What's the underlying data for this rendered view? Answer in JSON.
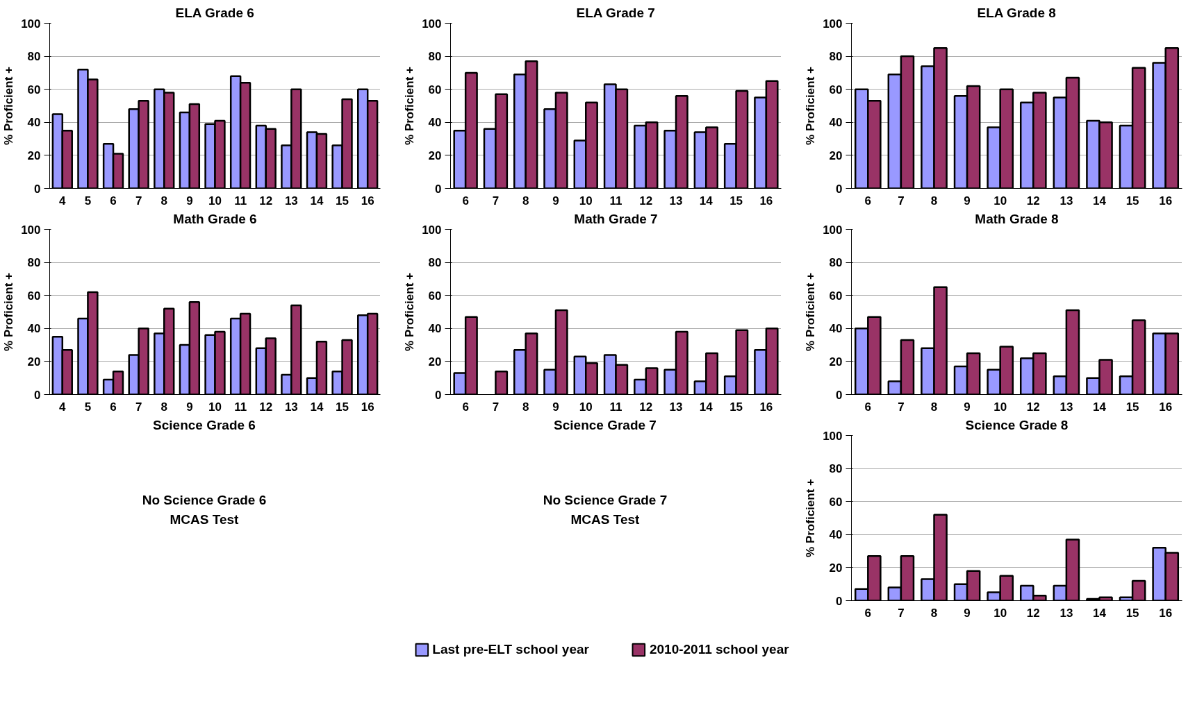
{
  "chart_data": [
    {
      "type": "bar",
      "title": "ELA Grade 6",
      "ylabel": "% Proficient +",
      "categories": [
        "4",
        "5",
        "6",
        "7",
        "8",
        "9",
        "10",
        "11",
        "12",
        "13",
        "14",
        "15",
        "16"
      ],
      "ylim": [
        0,
        100
      ],
      "yticks": [
        0,
        20,
        40,
        60,
        80,
        100
      ],
      "grid": "y",
      "series": [
        {
          "color": "#9999ff",
          "values": [
            45,
            72,
            27,
            48,
            60,
            46,
            39,
            68,
            38,
            26,
            34,
            26,
            60
          ]
        },
        {
          "color": "#993366",
          "values": [
            35,
            66,
            21,
            53,
            58,
            51,
            41,
            64,
            36,
            60,
            33,
            54,
            53
          ]
        }
      ]
    },
    {
      "type": "bar",
      "title": "ELA Grade 7",
      "ylabel": "% Proficient +",
      "categories": [
        "6",
        "7",
        "8",
        "9",
        "10",
        "11",
        "12",
        "13",
        "14",
        "15",
        "16"
      ],
      "ylim": [
        0,
        100
      ],
      "yticks": [
        0,
        20,
        40,
        60,
        80,
        100
      ],
      "grid": "y",
      "series": [
        {
          "color": "#9999ff",
          "values": [
            35,
            36,
            69,
            48,
            29,
            63,
            38,
            35,
            34,
            27,
            55
          ]
        },
        {
          "color": "#993366",
          "values": [
            70,
            57,
            77,
            58,
            52,
            60,
            40,
            56,
            37,
            59,
            65
          ]
        }
      ]
    },
    {
      "type": "bar",
      "title": "ELA Grade 8",
      "ylabel": "% Proficient +",
      "categories": [
        "6",
        "7",
        "8",
        "9",
        "10",
        "12",
        "13",
        "14",
        "15",
        "16"
      ],
      "ylim": [
        0,
        100
      ],
      "yticks": [
        0,
        20,
        40,
        60,
        80,
        100
      ],
      "grid": "y",
      "series": [
        {
          "color": "#9999ff",
          "values": [
            60,
            69,
            74,
            56,
            37,
            52,
            55,
            41,
            38,
            76
          ]
        },
        {
          "color": "#993366",
          "values": [
            53,
            80,
            85,
            62,
            60,
            58,
            67,
            40,
            73,
            85
          ]
        }
      ]
    },
    {
      "type": "bar",
      "title": "Math Grade 6",
      "ylabel": "% Proficient +",
      "categories": [
        "4",
        "5",
        "6",
        "7",
        "8",
        "9",
        "10",
        "11",
        "12",
        "13",
        "14",
        "15",
        "16"
      ],
      "ylim": [
        0,
        100
      ],
      "yticks": [
        0,
        20,
        40,
        60,
        80,
        100
      ],
      "grid": "y",
      "series": [
        {
          "color": "#9999ff",
          "values": [
            35,
            46,
            9,
            24,
            37,
            30,
            36,
            46,
            28,
            12,
            10,
            14,
            48
          ]
        },
        {
          "color": "#993366",
          "values": [
            27,
            62,
            14,
            40,
            52,
            56,
            38,
            49,
            34,
            54,
            32,
            33,
            49
          ]
        }
      ]
    },
    {
      "type": "bar",
      "title": "Math Grade 7",
      "ylabel": "% Proficient +",
      "categories": [
        "6",
        "7",
        "8",
        "9",
        "10",
        "11",
        "12",
        "13",
        "14",
        "15",
        "16"
      ],
      "ylim": [
        0,
        100
      ],
      "yticks": [
        0,
        20,
        40,
        60,
        80,
        100
      ],
      "grid": "y",
      "series": [
        {
          "color": "#9999ff",
          "values": [
            13,
            null,
            27,
            15,
            23,
            24,
            9,
            15,
            8,
            11,
            27
          ]
        },
        {
          "color": "#993366",
          "values": [
            47,
            14,
            37,
            51,
            19,
            18,
            16,
            38,
            25,
            39,
            40
          ]
        }
      ]
    },
    {
      "type": "bar",
      "title": "Math Grade 8",
      "ylabel": "% Proficient +",
      "categories": [
        "6",
        "7",
        "8",
        "9",
        "10",
        "12",
        "13",
        "14",
        "15",
        "16"
      ],
      "ylim": [
        0,
        100
      ],
      "yticks": [
        0,
        20,
        40,
        60,
        80,
        100
      ],
      "grid": "y",
      "series": [
        {
          "color": "#9999ff",
          "values": [
            40,
            8,
            28,
            17,
            15,
            22,
            11,
            10,
            11,
            37
          ]
        },
        {
          "color": "#993366",
          "values": [
            47,
            33,
            65,
            25,
            29,
            25,
            51,
            21,
            45,
            37
          ]
        }
      ]
    },
    {
      "type": "other",
      "title": "Science Grade 6",
      "annotations": [
        "No Science Grade 6\nMCAS Test"
      ]
    },
    {
      "type": "other",
      "title": "Science Grade 7",
      "annotations": [
        "No Science Grade 7\nMCAS Test"
      ]
    },
    {
      "type": "bar",
      "title": "Science Grade 8",
      "ylabel": "% Proficient +",
      "categories": [
        "6",
        "7",
        "8",
        "9",
        "10",
        "12",
        "13",
        "14",
        "15",
        "16"
      ],
      "ylim": [
        0,
        100
      ],
      "yticks": [
        0,
        20,
        40,
        60,
        80,
        100
      ],
      "grid": "y",
      "legend": "bottom",
      "series": [
        {
          "name": "Last pre-ELT school year",
          "color": "#9999ff",
          "values": [
            7,
            8,
            13,
            10,
            5,
            9,
            9,
            1,
            2,
            32
          ]
        },
        {
          "name": "2010-2011 school year",
          "color": "#993366",
          "values": [
            27,
            27,
            52,
            18,
            15,
            3,
            37,
            2,
            12,
            29
          ]
        }
      ]
    }
  ]
}
